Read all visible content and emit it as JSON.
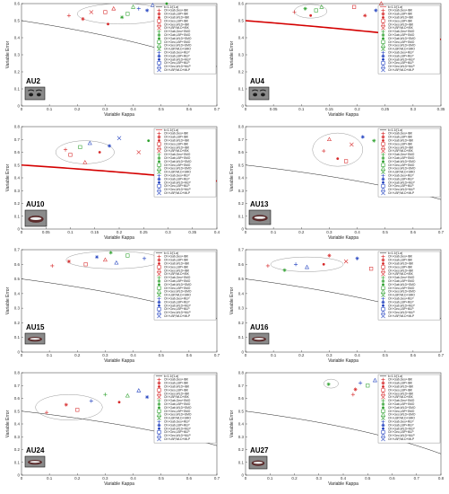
{
  "legend_entries": [
    "k=1-1/(1-a)",
    "CK+Gab,Geo+IBK",
    "CK+Gab,LBP+IBK",
    "CK+Gab,WLD+IBK",
    "CK+Geo,LBP+IBK",
    "CK+Geo,WLD+IBK",
    "CK+LBP,WLD+IBK",
    "CK+Gab,Geo+SMO",
    "CK+Gab,LBP+SMO",
    "CK+Gab,WLD+SMO",
    "CK+Geo,LBP+SMO",
    "CK+Geo,WLD+SMO",
    "CK+LBP,WLD+SMO",
    "CK+Gab,Geo+MLP",
    "CK+Gab,LBP+MLP",
    "CK+Gab,WLD+MLP",
    "CK+Geo,LBP+MLP",
    "CK+Geo,WLD+MLP",
    "CK+LBP,WLD+MLP"
  ],
  "series_styles": [
    {
      "marker": "plus",
      "color": "#d62728"
    },
    {
      "marker": "star",
      "color": "#d62728"
    },
    {
      "marker": "dot",
      "color": "#d62728"
    },
    {
      "marker": "square",
      "color": "#d62728"
    },
    {
      "marker": "triangle",
      "color": "#d62728"
    },
    {
      "marker": "x",
      "color": "#d62728"
    },
    {
      "marker": "plus",
      "color": "#2ca02c"
    },
    {
      "marker": "star",
      "color": "#2ca02c"
    },
    {
      "marker": "dot",
      "color": "#2ca02c"
    },
    {
      "marker": "square",
      "color": "#2ca02c"
    },
    {
      "marker": "triangle",
      "color": "#2ca02c"
    },
    {
      "marker": "x",
      "color": "#2ca02c"
    },
    {
      "marker": "plus",
      "color": "#1f3fbf"
    },
    {
      "marker": "star",
      "color": "#1f3fbf"
    },
    {
      "marker": "dot",
      "color": "#1f3fbf"
    },
    {
      "marker": "square",
      "color": "#1f3fbf"
    },
    {
      "marker": "triangle",
      "color": "#1f3fbf"
    },
    {
      "marker": "x",
      "color": "#1f3fbf"
    }
  ],
  "chart_data": [
    {
      "type": "scatter",
      "au_label": "AU2",
      "xlabel": "Variable Kappa",
      "ylabel": "Variable Error",
      "xlim": [
        0,
        0.7
      ],
      "ylim": [
        0,
        0.6
      ],
      "xticks": [
        "0",
        "0.1",
        "0.2",
        "0.3",
        "0.4",
        "0.5",
        "0.6",
        "0.7"
      ],
      "yticks": [
        "0",
        "0.1",
        "0.2",
        "0.3",
        "0.4",
        "0.5",
        "0.6"
      ],
      "curve_style": "thin",
      "points": [
        {
          "x": 0.17,
          "y": 0.53,
          "s": 0
        },
        {
          "x": 0.22,
          "y": 0.51,
          "s": 1
        },
        {
          "x": 0.25,
          "y": 0.55,
          "s": 5
        },
        {
          "x": 0.3,
          "y": 0.55,
          "s": 3
        },
        {
          "x": 0.33,
          "y": 0.57,
          "s": 4
        },
        {
          "x": 0.36,
          "y": 0.52,
          "s": 7
        },
        {
          "x": 0.38,
          "y": 0.54,
          "s": 9
        },
        {
          "x": 0.4,
          "y": 0.58,
          "s": 10
        },
        {
          "x": 0.42,
          "y": 0.57,
          "s": 12
        },
        {
          "x": 0.45,
          "y": 0.56,
          "s": 13
        },
        {
          "x": 0.47,
          "y": 0.59,
          "s": 16
        },
        {
          "x": 0.31,
          "y": 0.48,
          "s": 2
        },
        {
          "x": 0.52,
          "y": 0.6,
          "s": 8
        }
      ],
      "ellipse": {
        "cx": 0.36,
        "cy": 0.54,
        "rx": 0.16,
        "ry": 0.06
      }
    },
    {
      "type": "scatter",
      "au_label": "AU4",
      "xlabel": "Variable Kappa",
      "ylabel": "Variable Error",
      "xlim": [
        0,
        0.36
      ],
      "ylim": [
        0,
        0.6
      ],
      "xticks": [
        "0",
        "0.05",
        "0.1",
        "0.15",
        "0.2",
        "0.25",
        "0.3",
        "0.35"
      ],
      "yticks": [
        "0",
        "0.1",
        "0.2",
        "0.3",
        "0.4",
        "0.5",
        "0.6"
      ],
      "curve_style": "thick",
      "points": [
        {
          "x": 0.09,
          "y": 0.55,
          "s": 0
        },
        {
          "x": 0.11,
          "y": 0.57,
          "s": 7
        },
        {
          "x": 0.12,
          "y": 0.53,
          "s": 2
        },
        {
          "x": 0.13,
          "y": 0.56,
          "s": 9
        },
        {
          "x": 0.14,
          "y": 0.58,
          "s": 10
        },
        {
          "x": 0.2,
          "y": 0.58,
          "s": 3
        },
        {
          "x": 0.22,
          "y": 0.53,
          "s": 1
        },
        {
          "x": 0.24,
          "y": 0.56,
          "s": 13
        },
        {
          "x": 0.26,
          "y": 0.52,
          "s": 16
        },
        {
          "x": 0.3,
          "y": 0.57,
          "s": 5
        },
        {
          "x": 0.32,
          "y": 0.55,
          "s": 15
        },
        {
          "x": 0.33,
          "y": 0.58,
          "s": 14
        },
        {
          "x": 0.25,
          "y": 0.6,
          "s": 4
        }
      ],
      "ellipse": {
        "cx": 0.12,
        "cy": 0.555,
        "rx": 0.03,
        "ry": 0.04
      }
    },
    {
      "type": "scatter",
      "au_label": "AU10",
      "xlabel": "Variable Kappa",
      "ylabel": "Variable Error",
      "xlim": [
        0,
        0.4
      ],
      "ylim": [
        0,
        0.8
      ],
      "xticks": [
        "0",
        "0.05",
        "0.1",
        "0.15",
        "0.2",
        "0.25",
        "0.3",
        "0.35",
        "0.4"
      ],
      "yticks": [
        "0",
        "0.1",
        "0.2",
        "0.3",
        "0.4",
        "0.5",
        "0.6",
        "0.7",
        "0.8"
      ],
      "curve_style": "thick",
      "points": [
        {
          "x": 0.09,
          "y": 0.62,
          "s": 0
        },
        {
          "x": 0.1,
          "y": 0.58,
          "s": 3
        },
        {
          "x": 0.12,
          "y": 0.64,
          "s": 9
        },
        {
          "x": 0.13,
          "y": 0.52,
          "s": 4
        },
        {
          "x": 0.14,
          "y": 0.67,
          "s": 16
        },
        {
          "x": 0.16,
          "y": 0.6,
          "s": 2
        },
        {
          "x": 0.18,
          "y": 0.65,
          "s": 13
        },
        {
          "x": 0.2,
          "y": 0.71,
          "s": 17
        },
        {
          "x": 0.26,
          "y": 0.69,
          "s": 8
        },
        {
          "x": 0.29,
          "y": 0.72,
          "s": 15
        },
        {
          "x": 0.33,
          "y": 0.7,
          "s": 11
        },
        {
          "x": 0.24,
          "y": 0.6,
          "s": 5
        }
      ],
      "ellipse": {
        "cx": 0.13,
        "cy": 0.6,
        "rx": 0.06,
        "ry": 0.09
      }
    },
    {
      "type": "scatter",
      "au_label": "AU13",
      "xlabel": "Variable Kappa",
      "ylabel": "Variable Error",
      "xlim": [
        0,
        0.7
      ],
      "ylim": [
        0,
        0.8
      ],
      "xticks": [
        "0",
        "0.1",
        "0.2",
        "0.3",
        "0.4",
        "0.5",
        "0.6",
        "0.7"
      ],
      "yticks": [
        "0",
        "0.1",
        "0.2",
        "0.3",
        "0.4",
        "0.5",
        "0.6",
        "0.7",
        "0.8"
      ],
      "curve_style": "thin",
      "points": [
        {
          "x": 0.28,
          "y": 0.61,
          "s": 0
        },
        {
          "x": 0.3,
          "y": 0.7,
          "s": 4
        },
        {
          "x": 0.33,
          "y": 0.55,
          "s": 2
        },
        {
          "x": 0.36,
          "y": 0.53,
          "s": 3
        },
        {
          "x": 0.38,
          "y": 0.66,
          "s": 5
        },
        {
          "x": 0.42,
          "y": 0.72,
          "s": 13
        },
        {
          "x": 0.46,
          "y": 0.69,
          "s": 7
        },
        {
          "x": 0.5,
          "y": 0.74,
          "s": 10
        },
        {
          "x": 0.53,
          "y": 0.76,
          "s": 16
        },
        {
          "x": 0.58,
          "y": 0.71,
          "s": 14
        },
        {
          "x": 0.62,
          "y": 0.69,
          "s": 9
        },
        {
          "x": 0.54,
          "y": 0.52,
          "s": 1
        }
      ],
      "ellipse": {
        "cx": 0.33,
        "cy": 0.62,
        "rx": 0.09,
        "ry": 0.13
      }
    },
    {
      "type": "scatter",
      "au_label": "AU15",
      "xlabel": "Variable Kappa",
      "ylabel": "Variable Error",
      "xlim": [
        0,
        0.7
      ],
      "ylim": [
        0,
        0.7
      ],
      "xticks": [
        "0",
        "0.1",
        "0.2",
        "0.3",
        "0.4",
        "0.5",
        "0.6",
        "0.7"
      ],
      "yticks": [
        "0",
        "0.1",
        "0.2",
        "0.3",
        "0.4",
        "0.5",
        "0.6",
        "0.7"
      ],
      "curve_style": "thin",
      "points": [
        {
          "x": 0.11,
          "y": 0.59,
          "s": 0
        },
        {
          "x": 0.17,
          "y": 0.62,
          "s": 1
        },
        {
          "x": 0.23,
          "y": 0.6,
          "s": 3
        },
        {
          "x": 0.27,
          "y": 0.65,
          "s": 13
        },
        {
          "x": 0.3,
          "y": 0.63,
          "s": 4
        },
        {
          "x": 0.32,
          "y": 0.68,
          "s": 7
        },
        {
          "x": 0.34,
          "y": 0.61,
          "s": 16
        },
        {
          "x": 0.38,
          "y": 0.66,
          "s": 9
        },
        {
          "x": 0.44,
          "y": 0.64,
          "s": 12
        },
        {
          "x": 0.5,
          "y": 0.62,
          "s": 15
        },
        {
          "x": 0.56,
          "y": 0.64,
          "s": 10
        },
        {
          "x": 0.6,
          "y": 0.63,
          "s": 17
        }
      ],
      "ellipse": {
        "cx": 0.33,
        "cy": 0.63,
        "rx": 0.17,
        "ry": 0.06
      }
    },
    {
      "type": "scatter",
      "au_label": "AU16",
      "xlabel": "Variable Kappa",
      "ylabel": "Variable Error",
      "xlim": [
        0,
        0.7
      ],
      "ylim": [
        0,
        0.7
      ],
      "xticks": [
        "0",
        "0.1",
        "0.2",
        "0.3",
        "0.4",
        "0.5",
        "0.6",
        "0.7"
      ],
      "yticks": [
        "0",
        "0.1",
        "0.2",
        "0.3",
        "0.4",
        "0.5",
        "0.6",
        "0.7"
      ],
      "curve_style": "thin",
      "points": [
        {
          "x": 0.08,
          "y": 0.59,
          "s": 0
        },
        {
          "x": 0.14,
          "y": 0.56,
          "s": 7
        },
        {
          "x": 0.18,
          "y": 0.6,
          "s": 12
        },
        {
          "x": 0.22,
          "y": 0.58,
          "s": 16
        },
        {
          "x": 0.28,
          "y": 0.6,
          "s": 2
        },
        {
          "x": 0.3,
          "y": 0.66,
          "s": 1
        },
        {
          "x": 0.36,
          "y": 0.62,
          "s": 5
        },
        {
          "x": 0.4,
          "y": 0.64,
          "s": 13
        },
        {
          "x": 0.45,
          "y": 0.57,
          "s": 3
        },
        {
          "x": 0.5,
          "y": 0.62,
          "s": 10
        },
        {
          "x": 0.56,
          "y": 0.61,
          "s": 11
        },
        {
          "x": 0.62,
          "y": 0.62,
          "s": 9
        }
      ],
      "ellipse": {
        "cx": 0.22,
        "cy": 0.6,
        "rx": 0.13,
        "ry": 0.05
      }
    },
    {
      "type": "scatter",
      "au_label": "AU24",
      "xlabel": "Variable Kappa",
      "ylabel": "Variable Error",
      "xlim": [
        0,
        0.7
      ],
      "ylim": [
        0,
        0.8
      ],
      "xticks": [
        "0",
        "0.1",
        "0.2",
        "0.3",
        "0.4",
        "0.5",
        "0.6",
        "0.7"
      ],
      "yticks": [
        "0",
        "0.1",
        "0.2",
        "0.3",
        "0.4",
        "0.5",
        "0.6",
        "0.7",
        "0.8"
      ],
      "curve_style": "thin",
      "points": [
        {
          "x": 0.09,
          "y": 0.49,
          "s": 0
        },
        {
          "x": 0.16,
          "y": 0.55,
          "s": 1
        },
        {
          "x": 0.2,
          "y": 0.51,
          "s": 3
        },
        {
          "x": 0.25,
          "y": 0.58,
          "s": 12
        },
        {
          "x": 0.3,
          "y": 0.63,
          "s": 6
        },
        {
          "x": 0.35,
          "y": 0.57,
          "s": 2
        },
        {
          "x": 0.38,
          "y": 0.62,
          "s": 10
        },
        {
          "x": 0.42,
          "y": 0.66,
          "s": 16
        },
        {
          "x": 0.45,
          "y": 0.61,
          "s": 13
        },
        {
          "x": 0.49,
          "y": 0.64,
          "s": 4
        },
        {
          "x": 0.54,
          "y": 0.71,
          "s": 8
        }
      ],
      "ellipse": {
        "cx": 0.17,
        "cy": 0.53,
        "rx": 0.12,
        "ry": 0.1
      }
    },
    {
      "type": "scatter",
      "au_label": "AU27",
      "xlabel": "Variable Kappa",
      "ylabel": "Variable Error",
      "xlim": [
        0,
        0.8
      ],
      "ylim": [
        0,
        0.8
      ],
      "xticks": [
        "0",
        "0.1",
        "0.2",
        "0.3",
        "0.4",
        "0.5",
        "0.6",
        "0.7",
        "0.8"
      ],
      "yticks": [
        "0",
        "0.1",
        "0.2",
        "0.3",
        "0.4",
        "0.5",
        "0.6",
        "0.7",
        "0.8"
      ],
      "curve_style": "thin",
      "points": [
        {
          "x": 0.34,
          "y": 0.71,
          "s": 7
        },
        {
          "x": 0.45,
          "y": 0.67,
          "s": 1
        },
        {
          "x": 0.47,
          "y": 0.72,
          "s": 12
        },
        {
          "x": 0.5,
          "y": 0.7,
          "s": 9
        },
        {
          "x": 0.53,
          "y": 0.74,
          "s": 16
        },
        {
          "x": 0.56,
          "y": 0.69,
          "s": 3
        },
        {
          "x": 0.59,
          "y": 0.72,
          "s": 13
        },
        {
          "x": 0.62,
          "y": 0.7,
          "s": 11
        },
        {
          "x": 0.66,
          "y": 0.74,
          "s": 10
        },
        {
          "x": 0.7,
          "y": 0.76,
          "s": 15
        },
        {
          "x": 0.73,
          "y": 0.77,
          "s": 8
        },
        {
          "x": 0.44,
          "y": 0.63,
          "s": 0
        }
      ],
      "ellipse": {
        "cx": 0.35,
        "cy": 0.715,
        "rx": 0.03,
        "ry": 0.035
      }
    }
  ]
}
